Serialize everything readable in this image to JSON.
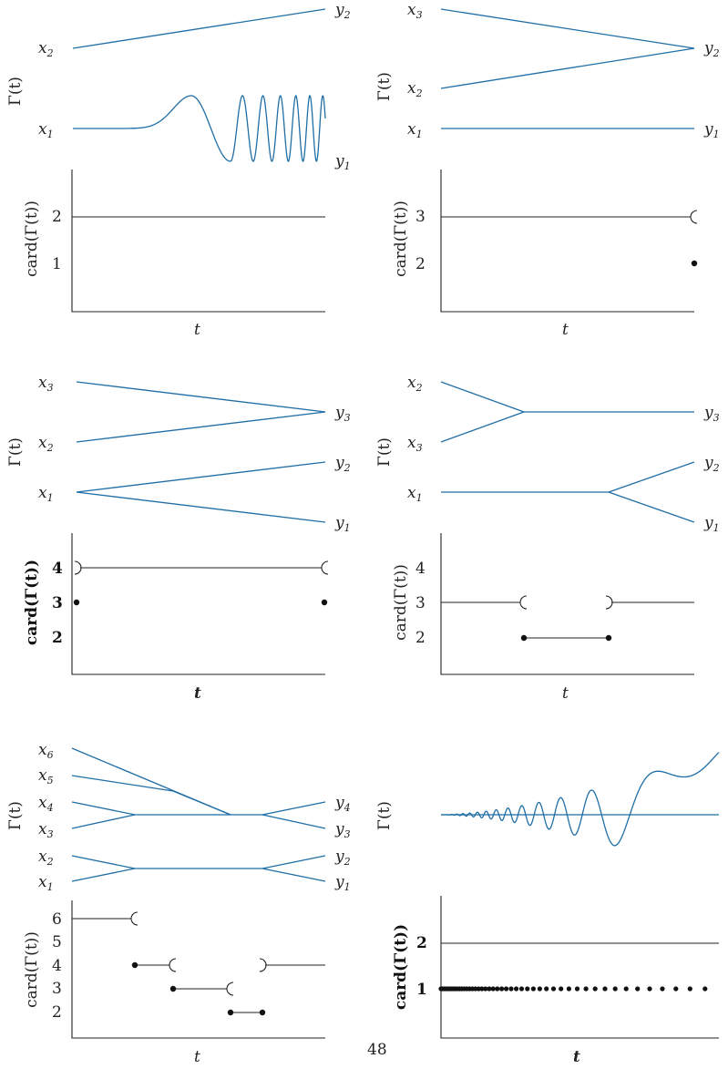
{
  "page_number": "48",
  "colors": {
    "curve": "#1f6ea6",
    "ink": "#222222"
  },
  "panels": [
    {
      "gamma_label": "Γ(t)",
      "card_label": "card(Γ(t))",
      "t_label": "t",
      "left_labels": [
        {
          "base": "x",
          "sub": "2"
        },
        {
          "base": "x",
          "sub": "1"
        }
      ],
      "right_labels": [
        {
          "base": "y",
          "sub": "2"
        },
        {
          "base": "y",
          "sub": "1"
        }
      ],
      "card_ticks": [
        "2",
        "1"
      ]
    },
    {
      "gamma_label": "Γ(t)",
      "card_label": "card(Γ(t))",
      "t_label": "t",
      "left_labels": [
        {
          "base": "x",
          "sub": "3"
        },
        {
          "base": "x",
          "sub": "2"
        },
        {
          "base": "x",
          "sub": "1"
        }
      ],
      "right_labels": [
        {
          "base": "y",
          "sub": "2"
        },
        {
          "base": "y",
          "sub": "1"
        }
      ],
      "card_ticks": [
        "3",
        "2"
      ]
    },
    {
      "gamma_label": "Γ(t)",
      "card_label": "card(Γ(t))",
      "t_label": "t",
      "left_labels": [
        {
          "base": "x",
          "sub": "3"
        },
        {
          "base": "x",
          "sub": "2"
        },
        {
          "base": "x",
          "sub": "1"
        }
      ],
      "right_labels": [
        {
          "base": "y",
          "sub": "3"
        },
        {
          "base": "y",
          "sub": "2"
        },
        {
          "base": "y",
          "sub": "1"
        }
      ],
      "card_ticks": [
        "4",
        "3",
        "2"
      ]
    },
    {
      "gamma_label": "Γ(t)",
      "card_label": "card(Γ(t))",
      "t_label": "t",
      "left_labels": [
        {
          "base": "x",
          "sub": "2"
        },
        {
          "base": "x",
          "sub": "3"
        },
        {
          "base": "x",
          "sub": "1"
        }
      ],
      "right_labels": [
        {
          "base": "y",
          "sub": "3"
        },
        {
          "base": "y",
          "sub": "2"
        },
        {
          "base": "y",
          "sub": "1"
        }
      ],
      "card_ticks": [
        "4",
        "3",
        "2"
      ]
    },
    {
      "gamma_label": "Γ(t)",
      "card_label": "card(Γ(t))",
      "t_label": "t",
      "left_labels": [
        {
          "base": "x",
          "sub": "6"
        },
        {
          "base": "x",
          "sub": "5"
        },
        {
          "base": "x",
          "sub": "4"
        },
        {
          "base": "x",
          "sub": "3"
        },
        {
          "base": "x",
          "sub": "2"
        },
        {
          "base": "x",
          "sub": "1"
        }
      ],
      "right_labels": [
        {
          "base": "y",
          "sub": "4"
        },
        {
          "base": "y",
          "sub": "3"
        },
        {
          "base": "y",
          "sub": "2"
        },
        {
          "base": "y",
          "sub": "1"
        }
      ],
      "card_ticks": [
        "6",
        "5",
        "4",
        "3",
        "2"
      ]
    },
    {
      "gamma_label": "Γ(t)",
      "card_label": "card(Γ(t))",
      "t_label": "t",
      "left_labels": [],
      "right_labels": [],
      "card_ticks": [
        "2",
        "1"
      ]
    }
  ]
}
